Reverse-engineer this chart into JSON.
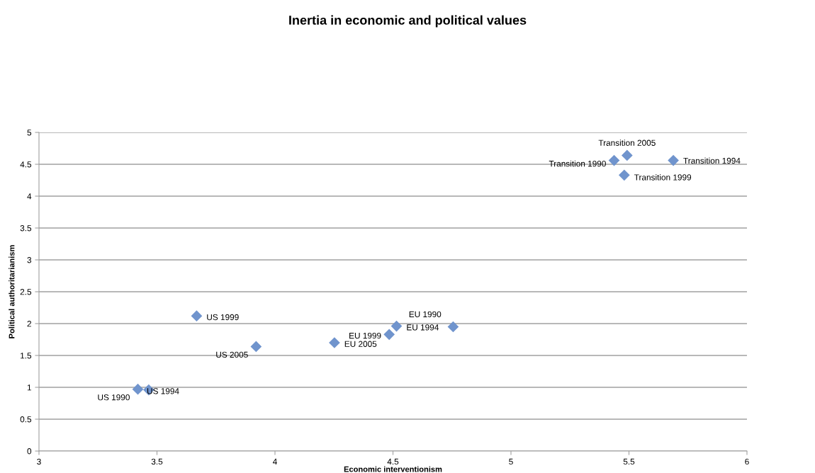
{
  "chart_data": {
    "type": "scatter",
    "title": "Inertia in economic and political values",
    "xlabel": "Economic interventionism",
    "ylabel": "Political authoritarianism",
    "x": [
      3.419,
      3.465,
      3.668,
      3.92,
      4.252,
      4.484,
      4.515,
      4.755,
      5.437,
      5.492,
      5.48,
      5.688
    ],
    "values": [
      0.97,
      0.96,
      2.12,
      1.64,
      1.7,
      1.83,
      1.96,
      1.95,
      4.56,
      4.64,
      4.33,
      4.56
    ],
    "color": "#7094cd",
    "marker": "diamond",
    "grid": "y",
    "legend": false,
    "xlim": [
      3,
      6
    ],
    "xticks": [
      3,
      3.5,
      4,
      4.5,
      5,
      5.5,
      6
    ],
    "ylim": [
      0,
      5
    ],
    "yticks": [
      0,
      0.5,
      1,
      1.5,
      2,
      2.5,
      3,
      3.5,
      4,
      4.5,
      5
    ],
    "annotations": [
      {
        "text": "US 1990",
        "x": 3.419,
        "y": 0.97
      },
      {
        "text": "US 1994",
        "x": 3.465,
        "y": 0.96
      },
      {
        "text": "US 1999",
        "x": 3.668,
        "y": 2.12
      },
      {
        "text": "US 2005",
        "x": 3.92,
        "y": 1.64
      },
      {
        "text": "EU 2005",
        "x": 4.252,
        "y": 1.7
      },
      {
        "text": "EU 1999",
        "x": 4.484,
        "y": 1.83
      },
      {
        "text": "EU 1994",
        "x": 4.515,
        "y": 1.96
      },
      {
        "text": "EU 1990",
        "x": 4.755,
        "y": 1.95
      },
      {
        "text": "Transition 1990",
        "x": 5.437,
        "y": 4.56
      },
      {
        "text": "Transition 2005",
        "x": 5.492,
        "y": 4.64
      },
      {
        "text": "Transition 1999",
        "x": 5.48,
        "y": 4.33
      },
      {
        "text": "Transition 1994",
        "x": 5.688,
        "y": 4.56
      }
    ]
  }
}
